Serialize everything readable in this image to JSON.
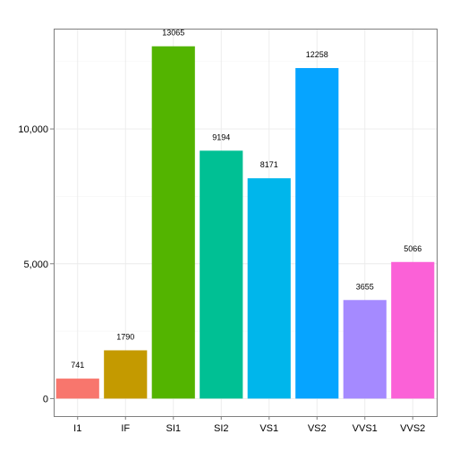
{
  "chart_data": {
    "type": "bar",
    "categories": [
      "I1",
      "IF",
      "SI1",
      "SI2",
      "VS1",
      "VS2",
      "VVS1",
      "VVS2"
    ],
    "values": [
      741,
      1790,
      13065,
      9194,
      8171,
      12258,
      3655,
      5066
    ],
    "data_labels": [
      "741",
      "1790",
      "13065",
      "9194",
      "8171",
      "12258",
      "3655",
      "5066"
    ],
    "colors": [
      "#F8766D",
      "#C49A00",
      "#53B400",
      "#00C094",
      "#00B6EB",
      "#06A4FF",
      "#A58AFF",
      "#FB61D7"
    ],
    "y_ticks": [
      0,
      5000,
      10000
    ],
    "y_tick_labels": [
      "0",
      "5,000",
      "10,000"
    ],
    "ylim": [
      -650,
      13720
    ],
    "title": "",
    "xlabel": "",
    "ylabel": "",
    "grid": true,
    "legend": "none"
  }
}
